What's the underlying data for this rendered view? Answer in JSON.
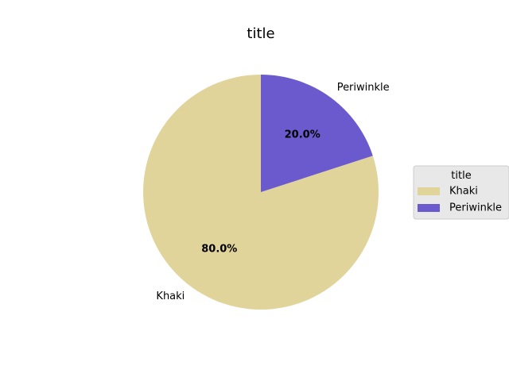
{
  "chart_data": {
    "type": "pie",
    "title": "title",
    "labels": [
      "Khaki",
      "Periwinkle"
    ],
    "values": [
      80.0,
      20.0
    ],
    "percent_labels": [
      "80.0%",
      "20.0%"
    ],
    "colors": [
      "#e1d49a",
      "#6a5acd"
    ],
    "start_angle_deg": 90,
    "direction": "counterclockwise",
    "legend": {
      "title": "title",
      "entries": [
        "Khaki",
        "Periwinkle"
      ],
      "placement": "right"
    }
  }
}
